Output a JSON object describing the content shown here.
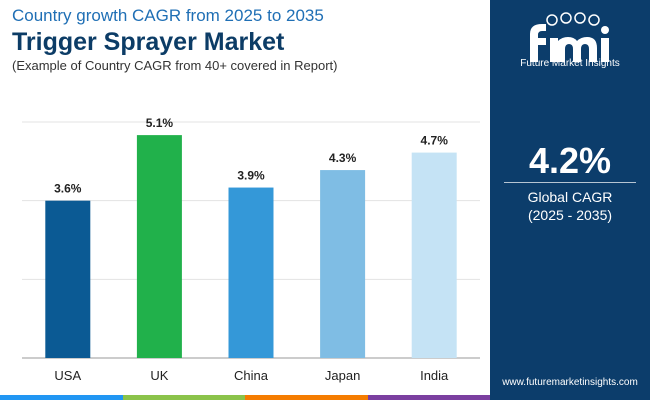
{
  "header": {
    "subtitle_top": "Country growth CAGR from 2025 to 2035",
    "title": "Trigger Sprayer Market",
    "subtitle_bottom": "(Example of Country CAGR from 40+ covered in Report)"
  },
  "sidebar": {
    "logo_text": "Future Market Insights",
    "global_value": "4.2%",
    "global_label": "Global CAGR",
    "global_years": "(2025 - 2035)",
    "website": "www.futuremarketinsights.com"
  },
  "colors": {
    "sidebar_bg": "#0c3d6b",
    "title": "#0c3c66",
    "subtitle": "#1f6fb5",
    "strip": [
      "#2196f3",
      "#8bc34a",
      "#f57c00",
      "#7b3fa0"
    ]
  },
  "chart_data": {
    "type": "bar",
    "categories": [
      "USA",
      "UK",
      "China",
      "Japan",
      "India"
    ],
    "values": [
      3.6,
      5.1,
      3.9,
      4.3,
      4.7
    ],
    "data_labels": [
      "3.6%",
      "5.1%",
      "3.9%",
      "4.3%",
      "4.7%"
    ],
    "bar_colors": [
      "#0b5a94",
      "#21b14b",
      "#3498d8",
      "#7fbde4",
      "#c5e3f5"
    ],
    "ylim": [
      0,
      5.4
    ],
    "grid": true,
    "gridlines": [
      0,
      1.8,
      3.6,
      5.4
    ],
    "title": "",
    "xlabel": "",
    "ylabel": ""
  }
}
